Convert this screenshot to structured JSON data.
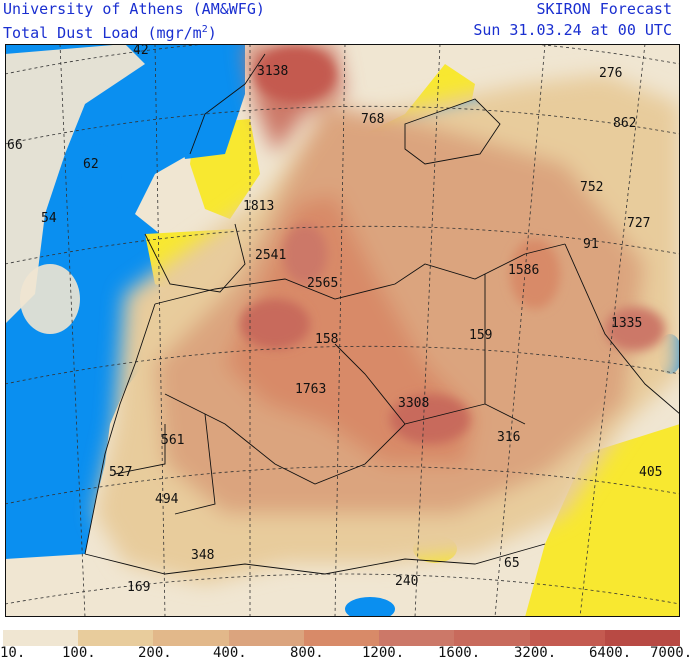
{
  "header": {
    "left_line1": "University of Athens (AM&WFG)",
    "left_line2_prefix": "Total Dust Load (mgr/m",
    "left_line2_sup": "2",
    "left_line2_suffix": ")",
    "right_line1": "SKIRON Forecast",
    "right_line2": "Sun 31.03.24 at 00 UTC"
  },
  "colors": {
    "sea_blue": "#0a8ff0",
    "yellow": "#f8e830",
    "bins": [
      "#f0e6d2",
      "#e8cc9c",
      "#e2b88a",
      "#dba47e",
      "#d88a68",
      "#cc7868",
      "#c86a5c",
      "#c45a50",
      "#b84a44"
    ]
  },
  "legend": {
    "ticks": [
      "10.",
      "100.",
      "200.",
      "400.",
      "800.",
      "1200.",
      "1600.",
      "3200.",
      "6400.",
      "7000."
    ]
  },
  "map_labels": [
    {
      "text": "42"
    },
    {
      "text": "3138"
    },
    {
      "text": "276"
    },
    {
      "text": "768"
    },
    {
      "text": "862"
    },
    {
      "text": "66"
    },
    {
      "text": "62"
    },
    {
      "text": "752"
    },
    {
      "text": "54"
    },
    {
      "text": "1813"
    },
    {
      "text": "727"
    },
    {
      "text": "91"
    },
    {
      "text": "2541"
    },
    {
      "text": "1586"
    },
    {
      "text": "2565"
    },
    {
      "text": "1335"
    },
    {
      "text": "158"
    },
    {
      "text": "159"
    },
    {
      "text": "1763"
    },
    {
      "text": "3308"
    },
    {
      "text": "561"
    },
    {
      "text": "316"
    },
    {
      "text": "527"
    },
    {
      "text": "405"
    },
    {
      "text": "494"
    },
    {
      "text": "348"
    },
    {
      "text": "65"
    },
    {
      "text": "169"
    },
    {
      "text": "240"
    }
  ]
}
